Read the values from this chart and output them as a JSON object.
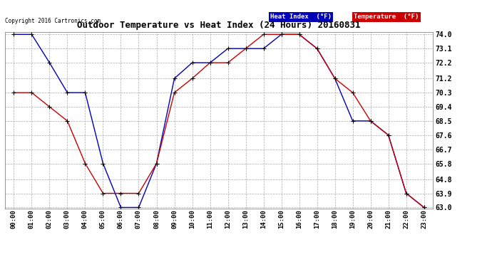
{
  "title": "Outdoor Temperature vs Heat Index (24 Hours) 20160831",
  "copyright": "Copyright 2016 Cartronics.com",
  "background_color": "#ffffff",
  "plot_bg_color": "#ffffff",
  "grid_color": "#aaaaaa",
  "x_labels": [
    "00:00",
    "01:00",
    "02:00",
    "03:00",
    "04:00",
    "05:00",
    "06:00",
    "07:00",
    "08:00",
    "09:00",
    "10:00",
    "11:00",
    "12:00",
    "13:00",
    "14:00",
    "15:00",
    "16:00",
    "17:00",
    "18:00",
    "19:00",
    "20:00",
    "21:00",
    "22:00",
    "23:00"
  ],
  "heat_index": [
    74.0,
    74.0,
    72.2,
    70.3,
    70.3,
    65.8,
    63.0,
    63.0,
    65.8,
    71.2,
    72.2,
    72.2,
    73.1,
    73.1,
    73.1,
    74.0,
    74.0,
    73.1,
    71.2,
    68.5,
    68.5,
    67.6,
    63.9,
    63.0
  ],
  "temperature": [
    70.3,
    70.3,
    69.4,
    68.5,
    65.8,
    63.9,
    63.9,
    63.9,
    65.8,
    70.3,
    71.2,
    72.2,
    72.2,
    73.1,
    74.0,
    74.0,
    74.0,
    73.1,
    71.2,
    70.3,
    68.5,
    67.6,
    63.9,
    63.0
  ],
  "heat_index_color": "#0000bb",
  "temperature_color": "#cc0000",
  "marker_color": "#000000",
  "ylim_min": 63.0,
  "ylim_max": 74.0,
  "yticks": [
    63.0,
    63.9,
    64.8,
    65.8,
    66.7,
    67.6,
    68.5,
    69.4,
    70.3,
    71.2,
    72.2,
    73.1,
    74.0
  ],
  "legend_hi_bg": "#0000bb",
  "legend_hi_fg": "#ffffff",
  "legend_temp_bg": "#cc0000",
  "legend_temp_fg": "#ffffff",
  "legend_hi_label": "Heat Index  (°F)",
  "legend_temp_label": "Temperature  (°F)"
}
